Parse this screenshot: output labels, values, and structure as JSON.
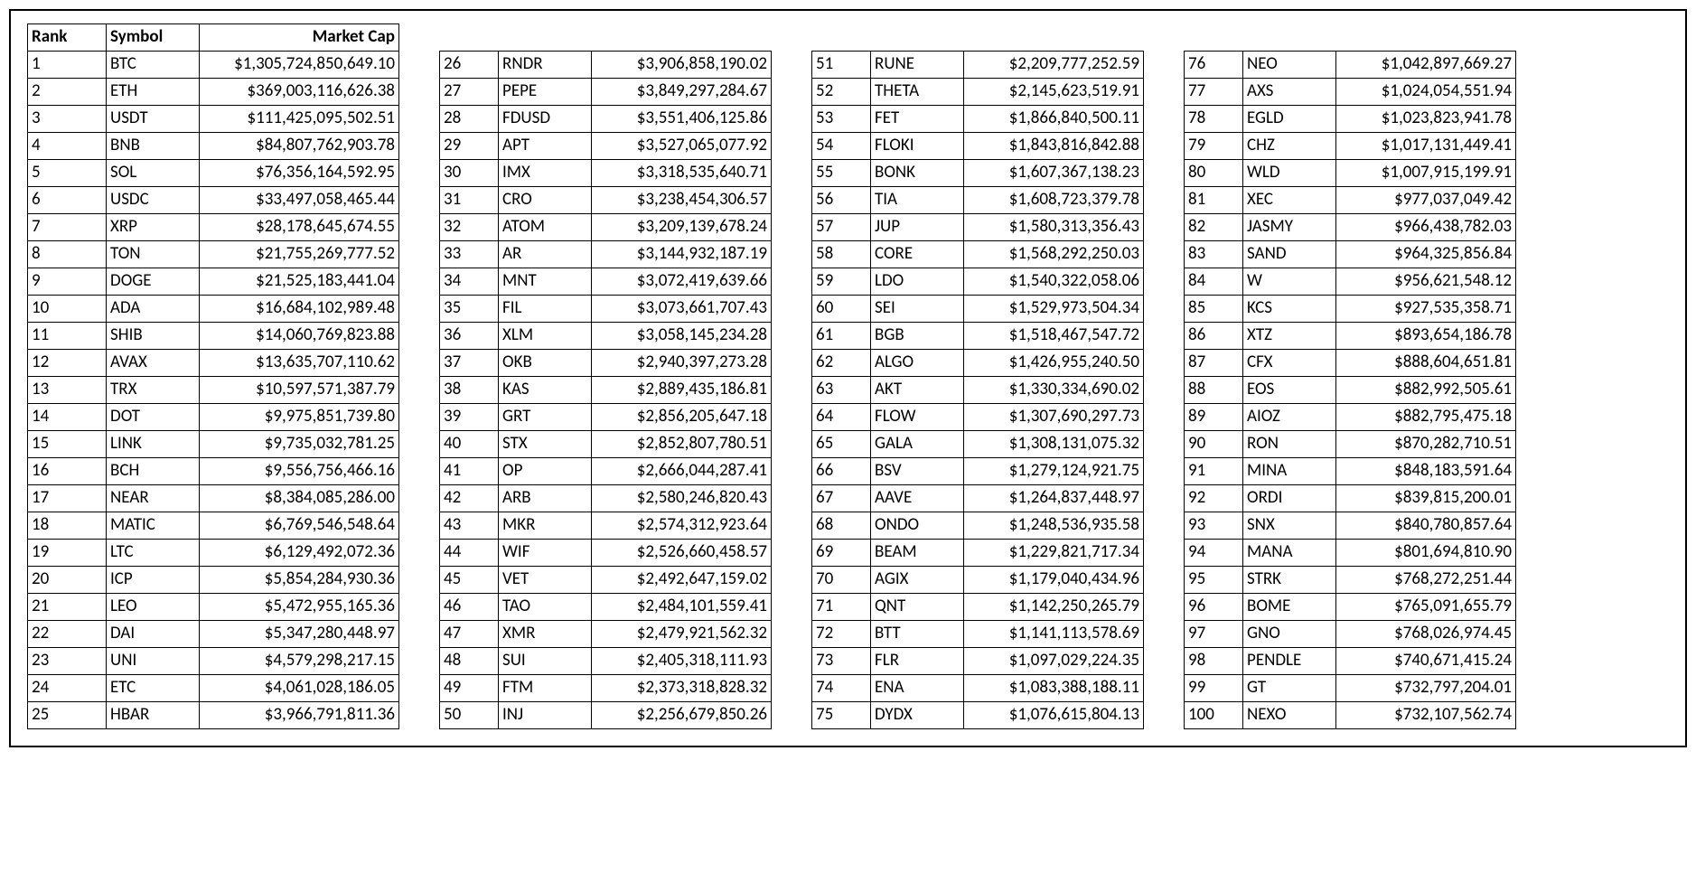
{
  "headers": {
    "rank": "Rank",
    "symbol": "Symbol",
    "marketCap": "Market Cap"
  },
  "layout": {
    "columns": 4,
    "rowsPerColumn": 25
  },
  "coins": [
    {
      "rank": "1",
      "symbol": "BTC",
      "marketCap": "$1,305,724,850,649.10"
    },
    {
      "rank": "2",
      "symbol": "ETH",
      "marketCap": "$369,003,116,626.38"
    },
    {
      "rank": "3",
      "symbol": "USDT",
      "marketCap": "$111,425,095,502.51"
    },
    {
      "rank": "4",
      "symbol": "BNB",
      "marketCap": "$84,807,762,903.78"
    },
    {
      "rank": "5",
      "symbol": "SOL",
      "marketCap": "$76,356,164,592.95"
    },
    {
      "rank": "6",
      "symbol": "USDC",
      "marketCap": "$33,497,058,465.44"
    },
    {
      "rank": "7",
      "symbol": "XRP",
      "marketCap": "$28,178,645,674.55"
    },
    {
      "rank": "8",
      "symbol": "TON",
      "marketCap": "$21,755,269,777.52"
    },
    {
      "rank": "9",
      "symbol": "DOGE",
      "marketCap": "$21,525,183,441.04"
    },
    {
      "rank": "10",
      "symbol": "ADA",
      "marketCap": "$16,684,102,989.48"
    },
    {
      "rank": "11",
      "symbol": "SHIB",
      "marketCap": "$14,060,769,823.88"
    },
    {
      "rank": "12",
      "symbol": "AVAX",
      "marketCap": "$13,635,707,110.62"
    },
    {
      "rank": "13",
      "symbol": "TRX",
      "marketCap": "$10,597,571,387.79"
    },
    {
      "rank": "14",
      "symbol": "DOT",
      "marketCap": "$9,975,851,739.80"
    },
    {
      "rank": "15",
      "symbol": "LINK",
      "marketCap": "$9,735,032,781.25"
    },
    {
      "rank": "16",
      "symbol": "BCH",
      "marketCap": "$9,556,756,466.16"
    },
    {
      "rank": "17",
      "symbol": "NEAR",
      "marketCap": "$8,384,085,286.00"
    },
    {
      "rank": "18",
      "symbol": "MATIC",
      "marketCap": "$6,769,546,548.64"
    },
    {
      "rank": "19",
      "symbol": "LTC",
      "marketCap": "$6,129,492,072.36"
    },
    {
      "rank": "20",
      "symbol": "ICP",
      "marketCap": "$5,854,284,930.36"
    },
    {
      "rank": "21",
      "symbol": "LEO",
      "marketCap": "$5,472,955,165.36"
    },
    {
      "rank": "22",
      "symbol": "DAI",
      "marketCap": "$5,347,280,448.97"
    },
    {
      "rank": "23",
      "symbol": "UNI",
      "marketCap": "$4,579,298,217.15"
    },
    {
      "rank": "24",
      "symbol": "ETC",
      "marketCap": "$4,061,028,186.05"
    },
    {
      "rank": "25",
      "symbol": "HBAR",
      "marketCap": "$3,966,791,811.36"
    },
    {
      "rank": "26",
      "symbol": "RNDR",
      "marketCap": "$3,906,858,190.02"
    },
    {
      "rank": "27",
      "symbol": "PEPE",
      "marketCap": "$3,849,297,284.67"
    },
    {
      "rank": "28",
      "symbol": "FDUSD",
      "marketCap": "$3,551,406,125.86"
    },
    {
      "rank": "29",
      "symbol": "APT",
      "marketCap": "$3,527,065,077.92"
    },
    {
      "rank": "30",
      "symbol": "IMX",
      "marketCap": "$3,318,535,640.71"
    },
    {
      "rank": "31",
      "symbol": "CRO",
      "marketCap": "$3,238,454,306.57"
    },
    {
      "rank": "32",
      "symbol": "ATOM",
      "marketCap": "$3,209,139,678.24"
    },
    {
      "rank": "33",
      "symbol": "AR",
      "marketCap": "$3,144,932,187.19"
    },
    {
      "rank": "34",
      "symbol": "MNT",
      "marketCap": "$3,072,419,639.66"
    },
    {
      "rank": "35",
      "symbol": "FIL",
      "marketCap": "$3,073,661,707.43"
    },
    {
      "rank": "36",
      "symbol": "XLM",
      "marketCap": "$3,058,145,234.28"
    },
    {
      "rank": "37",
      "symbol": "OKB",
      "marketCap": "$2,940,397,273.28"
    },
    {
      "rank": "38",
      "symbol": "KAS",
      "marketCap": "$2,889,435,186.81"
    },
    {
      "rank": "39",
      "symbol": "GRT",
      "marketCap": "$2,856,205,647.18"
    },
    {
      "rank": "40",
      "symbol": "STX",
      "marketCap": "$2,852,807,780.51"
    },
    {
      "rank": "41",
      "symbol": "OP",
      "marketCap": "$2,666,044,287.41"
    },
    {
      "rank": "42",
      "symbol": "ARB",
      "marketCap": "$2,580,246,820.43"
    },
    {
      "rank": "43",
      "symbol": "MKR",
      "marketCap": "$2,574,312,923.64"
    },
    {
      "rank": "44",
      "symbol": "WIF",
      "marketCap": "$2,526,660,458.57"
    },
    {
      "rank": "45",
      "symbol": "VET",
      "marketCap": "$2,492,647,159.02"
    },
    {
      "rank": "46",
      "symbol": "TAO",
      "marketCap": "$2,484,101,559.41"
    },
    {
      "rank": "47",
      "symbol": "XMR",
      "marketCap": "$2,479,921,562.32"
    },
    {
      "rank": "48",
      "symbol": "SUI",
      "marketCap": "$2,405,318,111.93"
    },
    {
      "rank": "49",
      "symbol": "FTM",
      "marketCap": "$2,373,318,828.32"
    },
    {
      "rank": "50",
      "symbol": "INJ",
      "marketCap": "$2,256,679,850.26"
    },
    {
      "rank": "51",
      "symbol": "RUNE",
      "marketCap": "$2,209,777,252.59"
    },
    {
      "rank": "52",
      "symbol": "THETA",
      "marketCap": "$2,145,623,519.91"
    },
    {
      "rank": "53",
      "symbol": "FET",
      "marketCap": "$1,866,840,500.11"
    },
    {
      "rank": "54",
      "symbol": "FLOKI",
      "marketCap": "$1,843,816,842.88"
    },
    {
      "rank": "55",
      "symbol": "BONK",
      "marketCap": "$1,607,367,138.23"
    },
    {
      "rank": "56",
      "symbol": "TIA",
      "marketCap": "$1,608,723,379.78"
    },
    {
      "rank": "57",
      "symbol": "JUP",
      "marketCap": "$1,580,313,356.43"
    },
    {
      "rank": "58",
      "symbol": "CORE",
      "marketCap": "$1,568,292,250.03"
    },
    {
      "rank": "59",
      "symbol": "LDO",
      "marketCap": "$1,540,322,058.06"
    },
    {
      "rank": "60",
      "symbol": "SEI",
      "marketCap": "$1,529,973,504.34"
    },
    {
      "rank": "61",
      "symbol": "BGB",
      "marketCap": "$1,518,467,547.72"
    },
    {
      "rank": "62",
      "symbol": "ALGO",
      "marketCap": "$1,426,955,240.50"
    },
    {
      "rank": "63",
      "symbol": "AKT",
      "marketCap": "$1,330,334,690.02"
    },
    {
      "rank": "64",
      "symbol": "FLOW",
      "marketCap": "$1,307,690,297.73"
    },
    {
      "rank": "65",
      "symbol": "GALA",
      "marketCap": "$1,308,131,075.32"
    },
    {
      "rank": "66",
      "symbol": "BSV",
      "marketCap": "$1,279,124,921.75"
    },
    {
      "rank": "67",
      "symbol": "AAVE",
      "marketCap": "$1,264,837,448.97"
    },
    {
      "rank": "68",
      "symbol": "ONDO",
      "marketCap": "$1,248,536,935.58"
    },
    {
      "rank": "69",
      "symbol": "BEAM",
      "marketCap": "$1,229,821,717.34"
    },
    {
      "rank": "70",
      "symbol": "AGIX",
      "marketCap": "$1,179,040,434.96"
    },
    {
      "rank": "71",
      "symbol": "QNT",
      "marketCap": "$1,142,250,265.79"
    },
    {
      "rank": "72",
      "symbol": "BTT",
      "marketCap": "$1,141,113,578.69"
    },
    {
      "rank": "73",
      "symbol": "FLR",
      "marketCap": "$1,097,029,224.35"
    },
    {
      "rank": "74",
      "symbol": "ENA",
      "marketCap": "$1,083,388,188.11"
    },
    {
      "rank": "75",
      "symbol": "DYDX",
      "marketCap": "$1,076,615,804.13"
    },
    {
      "rank": "76",
      "symbol": "NEO",
      "marketCap": "$1,042,897,669.27"
    },
    {
      "rank": "77",
      "symbol": "AXS",
      "marketCap": "$1,024,054,551.94"
    },
    {
      "rank": "78",
      "symbol": "EGLD",
      "marketCap": "$1,023,823,941.78"
    },
    {
      "rank": "79",
      "symbol": "CHZ",
      "marketCap": "$1,017,131,449.41"
    },
    {
      "rank": "80",
      "symbol": "WLD",
      "marketCap": "$1,007,915,199.91"
    },
    {
      "rank": "81",
      "symbol": "XEC",
      "marketCap": "$977,037,049.42"
    },
    {
      "rank": "82",
      "symbol": "JASMY",
      "marketCap": "$966,438,782.03"
    },
    {
      "rank": "83",
      "symbol": "SAND",
      "marketCap": "$964,325,856.84"
    },
    {
      "rank": "84",
      "symbol": "W",
      "marketCap": "$956,621,548.12"
    },
    {
      "rank": "85",
      "symbol": "KCS",
      "marketCap": "$927,535,358.71"
    },
    {
      "rank": "86",
      "symbol": "XTZ",
      "marketCap": "$893,654,186.78"
    },
    {
      "rank": "87",
      "symbol": "CFX",
      "marketCap": "$888,604,651.81"
    },
    {
      "rank": "88",
      "symbol": "EOS",
      "marketCap": "$882,992,505.61"
    },
    {
      "rank": "89",
      "symbol": "AIOZ",
      "marketCap": "$882,795,475.18"
    },
    {
      "rank": "90",
      "symbol": "RON",
      "marketCap": "$870,282,710.51"
    },
    {
      "rank": "91",
      "symbol": "MINA",
      "marketCap": "$848,183,591.64"
    },
    {
      "rank": "92",
      "symbol": "ORDI",
      "marketCap": "$839,815,200.01"
    },
    {
      "rank": "93",
      "symbol": "SNX",
      "marketCap": "$840,780,857.64"
    },
    {
      "rank": "94",
      "symbol": "MANA",
      "marketCap": "$801,694,810.90"
    },
    {
      "rank": "95",
      "symbol": "STRK",
      "marketCap": "$768,272,251.44"
    },
    {
      "rank": "96",
      "symbol": "BOME",
      "marketCap": "$765,091,655.79"
    },
    {
      "rank": "97",
      "symbol": "GNO",
      "marketCap": "$768,026,974.45"
    },
    {
      "rank": "98",
      "symbol": "PENDLE",
      "marketCap": "$740,671,415.24"
    },
    {
      "rank": "99",
      "symbol": "GT",
      "marketCap": "$732,797,204.01"
    },
    {
      "rank": "100",
      "symbol": "NEXO",
      "marketCap": "$732,107,562.74"
    }
  ]
}
